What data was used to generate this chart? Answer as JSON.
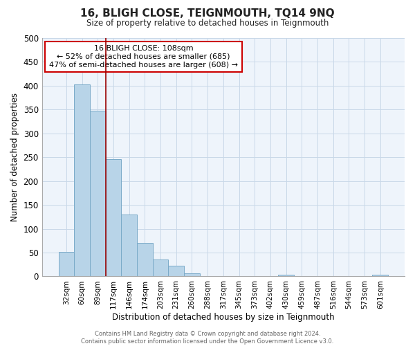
{
  "title": "16, BLIGH CLOSE, TEIGNMOUTH, TQ14 9NQ",
  "subtitle": "Size of property relative to detached houses in Teignmouth",
  "xlabel": "Distribution of detached houses by size in Teignmouth",
  "ylabel": "Number of detached properties",
  "bar_labels": [
    "32sqm",
    "60sqm",
    "89sqm",
    "117sqm",
    "146sqm",
    "174sqm",
    "203sqm",
    "231sqm",
    "260sqm",
    "288sqm",
    "317sqm",
    "345sqm",
    "373sqm",
    "402sqm",
    "430sqm",
    "459sqm",
    "487sqm",
    "516sqm",
    "544sqm",
    "573sqm",
    "601sqm"
  ],
  "bar_values": [
    52,
    403,
    348,
    246,
    130,
    71,
    36,
    22,
    6,
    0,
    0,
    0,
    0,
    0,
    4,
    0,
    0,
    0,
    0,
    0,
    3
  ],
  "bar_color": "#b8d4e8",
  "bar_edge_color": "#7aaac8",
  "vline_x": 2.5,
  "vline_color": "#990000",
  "ylim": [
    0,
    500
  ],
  "yticks": [
    0,
    50,
    100,
    150,
    200,
    250,
    300,
    350,
    400,
    450,
    500
  ],
  "annotation_title": "16 BLIGH CLOSE: 108sqm",
  "annotation_line1": "← 52% of detached houses are smaller (685)",
  "annotation_line2": "47% of semi-detached houses are larger (608) →",
  "annotation_box_color": "#ffffff",
  "annotation_box_edge": "#cc0000",
  "footer_line1": "Contains HM Land Registry data © Crown copyright and database right 2024.",
  "footer_line2": "Contains public sector information licensed under the Open Government Licence v3.0.",
  "bg_color": "#eef4fb"
}
